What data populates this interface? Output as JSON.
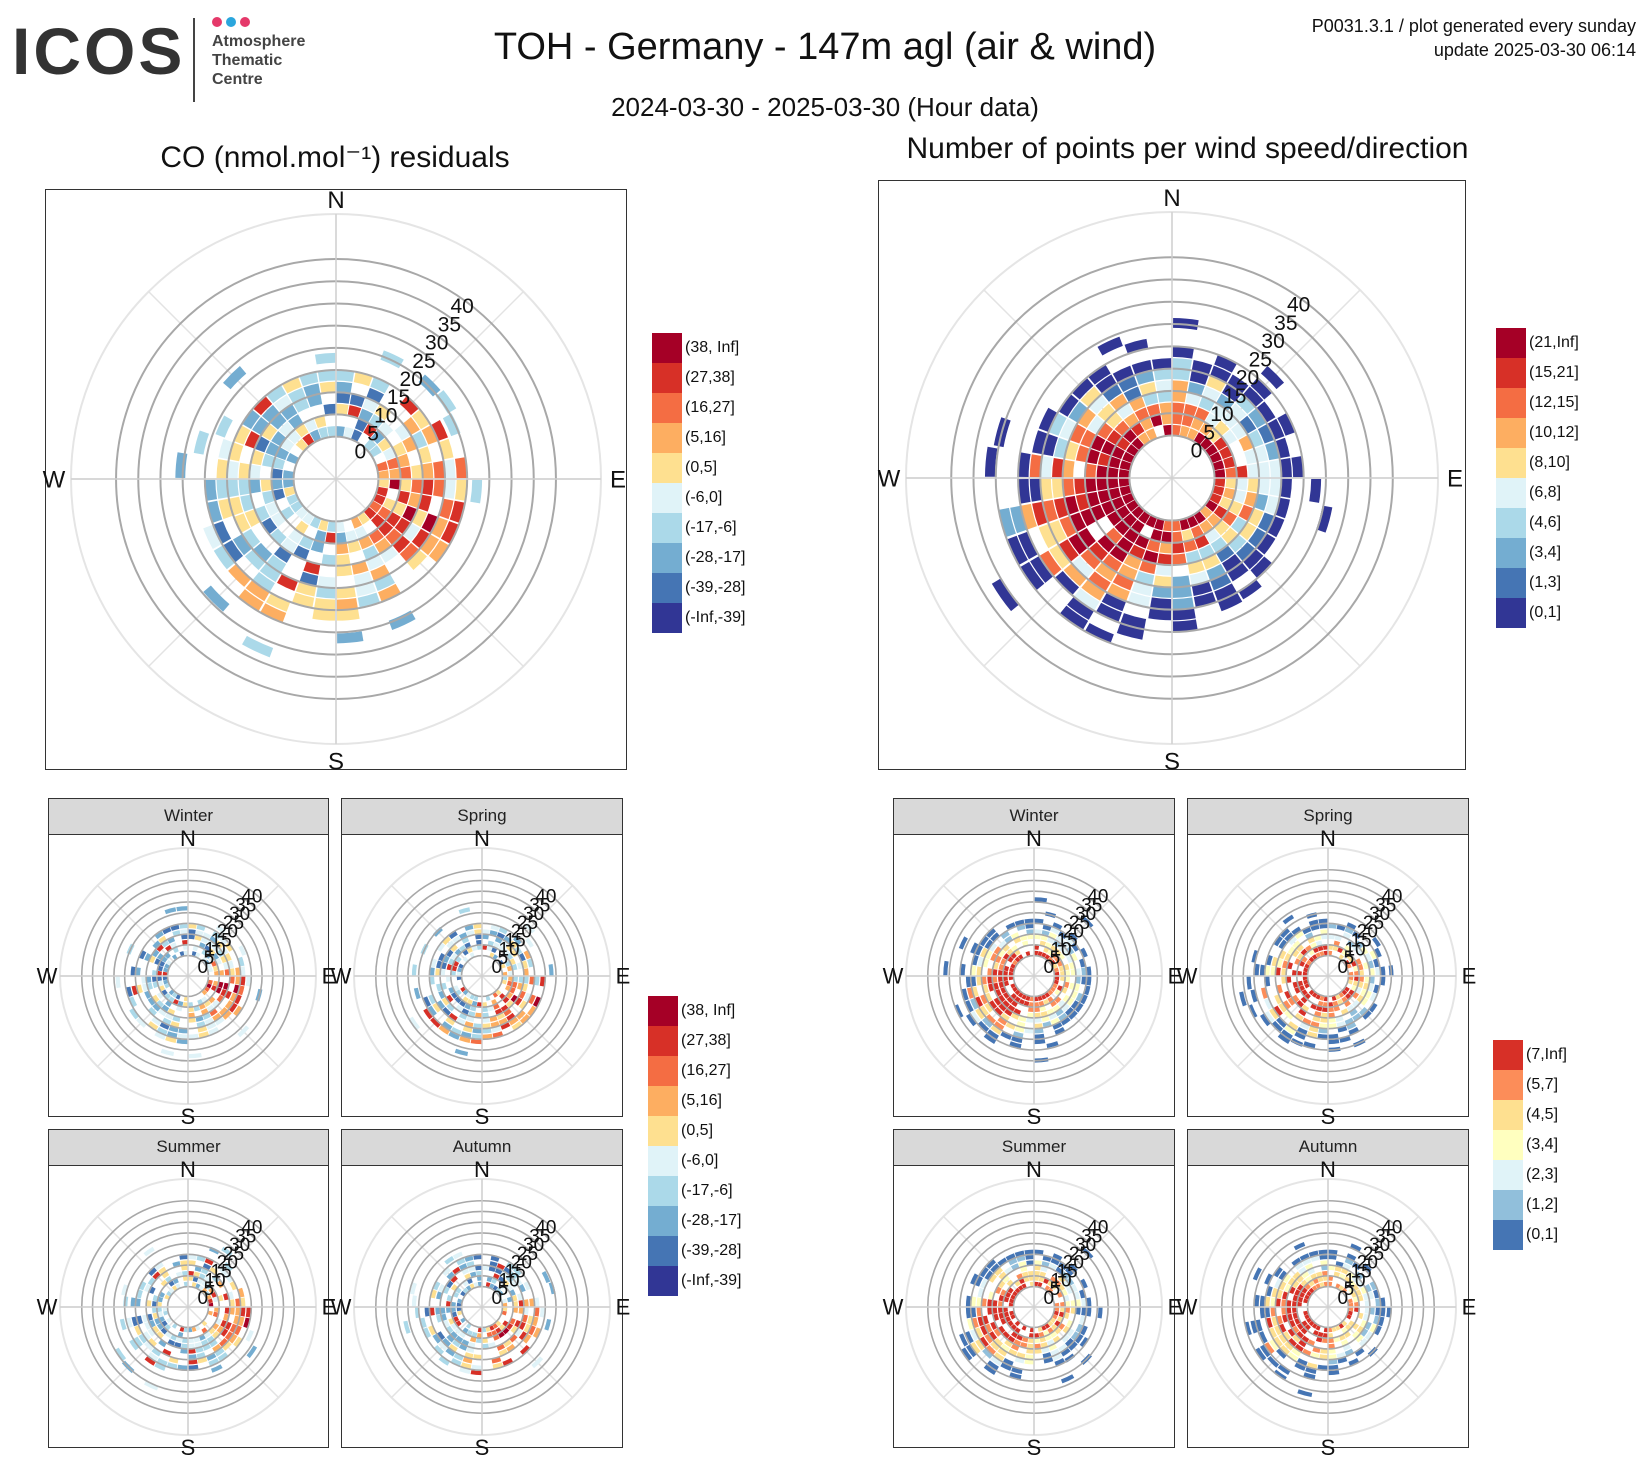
{
  "logo": {
    "word": "ICOS",
    "line1": "Atmosphere",
    "line2": "Thematic",
    "line3": "Centre",
    "dot_colors": [
      "#e5396a",
      "#2aa6dd",
      "#e5396a"
    ]
  },
  "header": {
    "title": "TOH - Germany - 147m agl (air & wind)",
    "subtitle": "2024-03-30 - 2025-03-30 (Hour data)",
    "meta_line1": "P0031.3.1 / plot generated every sunday",
    "meta_line2": "update  2025-03-30 06:14"
  },
  "panels": {
    "left_title": "CO (nmol.mol⁻¹) residuals",
    "right_title": "Number of points per wind speed/direction"
  },
  "compass": {
    "n": "N",
    "e": "E",
    "s": "S",
    "w": "W"
  },
  "seasons": [
    "Winter",
    "Spring",
    "Summer",
    "Autumn"
  ],
  "legends": {
    "co_residuals": {
      "labels": [
        "(38, Inf]",
        "(27,38]",
        "(16,27]",
        "(5,16]",
        "(0,5]",
        "(-6,0]",
        "(-17,-6]",
        "(-28,-17]",
        "(-39,-28]",
        "(-Inf,-39]"
      ],
      "colors": [
        "#a50026",
        "#d73027",
        "#f46d43",
        "#fdae61",
        "#fee090",
        "#e0f3f8",
        "#abd9e9",
        "#74add1",
        "#4575b4",
        "#313695"
      ]
    },
    "counts_main": {
      "labels": [
        "(21,Inf]",
        "(15,21]",
        "(12,15]",
        "(10,12]",
        "(8,10]",
        "(6,8]",
        "(4,6]",
        "(3,4]",
        "(1,3]",
        "(0,1]"
      ],
      "colors": [
        "#a50026",
        "#d73027",
        "#f46d43",
        "#fdae61",
        "#fee090",
        "#e0f3f8",
        "#abd9e9",
        "#74add1",
        "#4575b4",
        "#313695"
      ]
    },
    "counts_season": {
      "labels": [
        "(7,Inf]",
        "(5,7]",
        "(4,5]",
        "(3,4]",
        "(2,3]",
        "(1,2]",
        "(0,1]"
      ],
      "colors": [
        "#d73027",
        "#fc8d59",
        "#fee090",
        "#ffffbf",
        "#e0f3f8",
        "#91bfdb",
        "#4575b4"
      ]
    }
  },
  "chart_data": [
    {
      "type": "polar-heatmap",
      "title": "CO (nmol.mol⁻¹) residuals",
      "radial_axis": "wind speed",
      "radial_ticks": [
        "0",
        "5",
        "10",
        "15",
        "20",
        "25",
        "30",
        "35",
        "40"
      ],
      "rlim": [
        0,
        40
      ],
      "angular_axis": "wind direction",
      "directions": [
        "N",
        "E",
        "S",
        "W"
      ],
      "color_scale": "legends.co_residuals",
      "facets": [
        "all",
        "Winter",
        "Spring",
        "Summer",
        "Autumn"
      ],
      "dominant_sector": "E to SE high residuals",
      "grid": true
    },
    {
      "type": "polar-heatmap",
      "title": "Number of points per wind speed/direction",
      "radial_axis": "wind speed",
      "radial_ticks": [
        "0",
        "5",
        "10",
        "15",
        "20",
        "25",
        "30",
        "35",
        "40"
      ],
      "rlim": [
        0,
        40
      ],
      "angular_axis": "wind direction",
      "directions": [
        "N",
        "E",
        "S",
        "W"
      ],
      "color_scale": "legends.counts_main / legends.counts_season",
      "facets": [
        "all",
        "Winter",
        "Spring",
        "Summer",
        "Autumn"
      ],
      "dominant_sector": "W to SW highest counts",
      "grid": true
    }
  ]
}
